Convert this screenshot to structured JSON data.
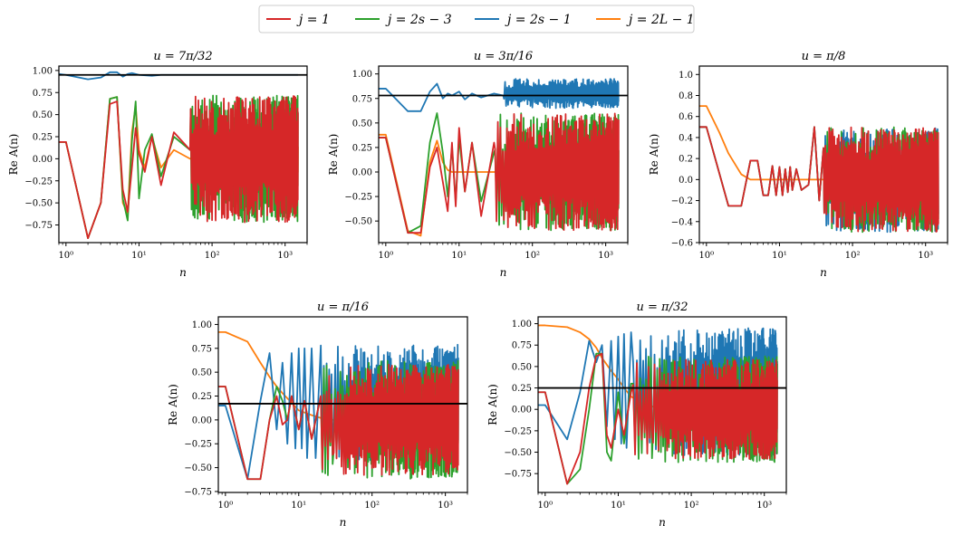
{
  "colors": {
    "j=1": "#d62728",
    "j=2s-3": "#2ca02c",
    "j=2s-1": "#1f77b4",
    "j=2L-1": "#ff7f0e",
    "reference": "#000000"
  },
  "legend": [
    {
      "key": "j=1",
      "label": "j = 1"
    },
    {
      "key": "j=2s-3",
      "label": "j = 2s − 3"
    },
    {
      "key": "j=2s-1",
      "label": "j = 2s − 1"
    },
    {
      "key": "j=2L-1",
      "label": "j = 2L − 1"
    }
  ],
  "chart_data": [
    {
      "type": "line",
      "title": "u = 7π/32",
      "xlabel": "n",
      "ylabel": "Re A(n)",
      "xscale": "log",
      "xlim": [
        0.8,
        2000
      ],
      "x_ticks": [
        "10⁰",
        "10¹",
        "10²",
        "10³"
      ],
      "ylim": [
        -0.95,
        1.05
      ],
      "y_ticks": [
        "1.00",
        "0.75",
        "0.50",
        "0.25",
        "0.00",
        "−0.25",
        "−0.50",
        "−0.75"
      ],
      "y_tick_values": [
        1.0,
        0.75,
        0.5,
        0.25,
        0.0,
        -0.25,
        -0.5,
        -0.75
      ],
      "reference_line": 0.95,
      "series": [
        {
          "key": "j=2s-1",
          "x": [
            0.8,
            1,
            2,
            3,
            4,
            5,
            6,
            7,
            8,
            10,
            15,
            20,
            30,
            50,
            100,
            200,
            500,
            1500
          ],
          "y": [
            0.96,
            0.95,
            0.9,
            0.92,
            0.98,
            0.98,
            0.93,
            0.96,
            0.97,
            0.95,
            0.94,
            0.95,
            0.95,
            0.95,
            0.95,
            0.95,
            0.95,
            0.95
          ],
          "noise": {
            "from": 80,
            "amp": 0.03,
            "offset": 0.95
          }
        },
        {
          "key": "j=2L-1",
          "x": [
            0.8,
            1,
            2,
            3,
            4,
            5,
            6,
            7,
            8,
            9,
            10,
            12,
            15,
            20,
            30,
            50,
            100
          ],
          "y": [
            0.19,
            0.19,
            -0.9,
            -0.5,
            0.68,
            0.7,
            -0.5,
            -0.62,
            0.3,
            0.6,
            0.1,
            -0.1,
            0.25,
            -0.1,
            0.1,
            0.0,
            0.0
          ],
          "noise": {
            "from": 40,
            "amp": 0.35,
            "offset": 0.0
          }
        },
        {
          "key": "j=2s-3",
          "x": [
            0.8,
            1,
            2,
            3,
            4,
            5,
            6,
            7,
            8,
            9,
            10,
            12,
            15,
            20,
            30,
            50
          ],
          "y": [
            0.19,
            0.19,
            -0.9,
            -0.5,
            0.68,
            0.7,
            -0.45,
            -0.7,
            0.2,
            0.65,
            -0.45,
            0.1,
            0.28,
            -0.2,
            0.25,
            0.1
          ],
          "noise": {
            "from": 50,
            "amp": 0.72,
            "offset": 0.0
          }
        },
        {
          "key": "j=1",
          "x": [
            0.8,
            1,
            2,
            3,
            4,
            5,
            6,
            7,
            8,
            9,
            10,
            12,
            15,
            20,
            30,
            50
          ],
          "y": [
            0.19,
            0.19,
            -0.9,
            -0.5,
            0.62,
            0.65,
            -0.35,
            -0.6,
            -0.1,
            0.35,
            0.05,
            -0.15,
            0.25,
            -0.3,
            0.3,
            0.1
          ],
          "noise": {
            "from": 40,
            "amp": 0.72,
            "offset": 0.0
          }
        }
      ]
    },
    {
      "type": "line",
      "title": "u = 3π/16",
      "xlabel": "n",
      "ylabel": "Re A(n)",
      "xscale": "log",
      "xlim": [
        0.8,
        2000
      ],
      "x_ticks": [
        "10⁰",
        "10¹",
        "10²",
        "10³"
      ],
      "ylim": [
        -0.72,
        1.08
      ],
      "y_ticks": [
        "1.00",
        "0.75",
        "0.50",
        "0.25",
        "0.00",
        "−0.25",
        "−0.50"
      ],
      "y_tick_values": [
        1.0,
        0.75,
        0.5,
        0.25,
        0.0,
        -0.25,
        -0.5
      ],
      "reference_line": 0.78,
      "series": [
        {
          "key": "j=2s-1",
          "x": [
            0.8,
            1,
            2,
            3,
            4,
            5,
            6,
            7,
            8,
            10,
            12,
            15,
            20,
            30,
            40
          ],
          "y": [
            0.85,
            0.85,
            0.62,
            0.62,
            0.82,
            0.9,
            0.75,
            0.8,
            0.78,
            0.82,
            0.74,
            0.8,
            0.76,
            0.8,
            0.78
          ],
          "noise": {
            "from": 40,
            "amp": 0.15,
            "offset": 0.8
          }
        },
        {
          "key": "j=2L-1",
          "x": [
            0.8,
            1,
            2,
            3,
            4,
            5,
            6,
            7,
            8,
            10,
            12,
            15,
            20,
            50,
            100,
            200,
            500,
            1500
          ],
          "y": [
            0.38,
            0.38,
            -0.6,
            -0.65,
            0.1,
            0.32,
            0.1,
            0.02,
            0.0,
            0.0,
            0.0,
            0.0,
            0.0,
            0.0,
            0.0,
            0.0,
            0.0,
            0.0
          ]
        },
        {
          "key": "j=2s-3",
          "x": [
            0.8,
            1,
            2,
            3,
            4,
            5,
            6,
            7,
            8,
            9,
            10,
            12,
            15,
            20,
            30
          ],
          "y": [
            0.35,
            0.35,
            -0.62,
            -0.55,
            0.3,
            0.6,
            0.2,
            -0.25,
            0.25,
            -0.3,
            0.35,
            -0.2,
            0.3,
            -0.3,
            0.2
          ],
          "noise": {
            "from": 30,
            "amp": 0.6,
            "offset": 0.0
          }
        },
        {
          "key": "j=1",
          "x": [
            0.8,
            1,
            2,
            3,
            4,
            5,
            6,
            7,
            8,
            9,
            10,
            12,
            15,
            20,
            30
          ],
          "y": [
            0.35,
            0.35,
            -0.62,
            -0.62,
            0.05,
            0.25,
            -0.1,
            -0.4,
            0.3,
            -0.35,
            0.45,
            -0.2,
            0.3,
            -0.45,
            0.3
          ],
          "noise": {
            "from": 25,
            "amp": 0.6,
            "offset": 0.0
          }
        }
      ]
    },
    {
      "type": "line",
      "title": "u = π/8",
      "xlabel": "n",
      "ylabel": "Re A(n)",
      "xscale": "log",
      "xlim": [
        0.8,
        2000
      ],
      "x_ticks": [
        "10⁰",
        "10¹",
        "10²",
        "10³"
      ],
      "ylim": [
        -0.6,
        1.08
      ],
      "y_ticks": [
        "1.0",
        "0.8",
        "0.6",
        "0.4",
        "0.2",
        "0.0",
        "−0.2",
        "−0.4",
        "−0.6"
      ],
      "y_tick_values": [
        1.0,
        0.8,
        0.6,
        0.4,
        0.2,
        0.0,
        -0.2,
        -0.4,
        -0.6
      ],
      "reference_line": null,
      "series": [
        {
          "key": "j=2L-1",
          "x": [
            0.8,
            1,
            1.5,
            2,
            3,
            4,
            5,
            6,
            8,
            10,
            15,
            20,
            30,
            50,
            100,
            200,
            500,
            1500
          ],
          "y": [
            0.7,
            0.7,
            0.45,
            0.25,
            0.05,
            0.0,
            0.0,
            0.0,
            0.0,
            0.0,
            0.0,
            0.0,
            0.0,
            0.0,
            0.0,
            0.0,
            0.0,
            0.0
          ]
        },
        {
          "key": "j=2s-1",
          "x": [
            0.8,
            1,
            2,
            3,
            4,
            5,
            6,
            7,
            8,
            9,
            10,
            11,
            12,
            13,
            14,
            15,
            17,
            20,
            25,
            30,
            35,
            40
          ],
          "y": [
            0.5,
            0.5,
            -0.25,
            -0.25,
            0.18,
            0.18,
            -0.15,
            -0.15,
            0.13,
            -0.15,
            0.12,
            -0.15,
            0.1,
            -0.12,
            0.12,
            -0.1,
            0.1,
            -0.1,
            -0.05,
            0.5,
            -0.2,
            0.3
          ],
          "noise": {
            "from": 40,
            "amp": 0.5,
            "offset": 0.0
          }
        },
        {
          "key": "j=2s-3",
          "x": [
            0.8,
            1,
            2,
            3,
            4,
            5,
            6,
            7,
            8,
            9,
            10,
            11,
            12,
            13,
            14,
            15,
            17,
            20,
            25,
            30,
            35,
            40
          ],
          "y": [
            0.5,
            0.5,
            -0.25,
            -0.25,
            0.18,
            0.18,
            -0.15,
            -0.15,
            0.13,
            -0.15,
            0.12,
            -0.15,
            0.1,
            -0.12,
            0.12,
            -0.1,
            0.1,
            -0.1,
            -0.05,
            0.5,
            -0.2,
            0.3
          ],
          "noise": {
            "from": 40,
            "amp": 0.5,
            "offset": 0.0
          }
        },
        {
          "key": "j=1",
          "x": [
            0.8,
            1,
            2,
            3,
            4,
            5,
            6,
            7,
            8,
            9,
            10,
            11,
            12,
            13,
            14,
            15,
            17,
            20,
            25,
            30,
            35,
            40
          ],
          "y": [
            0.5,
            0.5,
            -0.25,
            -0.25,
            0.18,
            0.18,
            -0.15,
            -0.15,
            0.13,
            -0.15,
            0.12,
            -0.15,
            0.1,
            -0.12,
            0.12,
            -0.1,
            0.1,
            -0.1,
            -0.05,
            0.5,
            -0.2,
            0.3
          ],
          "noise": {
            "from": 40,
            "amp": 0.5,
            "offset": 0.0
          }
        }
      ]
    },
    {
      "type": "line",
      "title": "u = π/16",
      "xlabel": "n",
      "ylabel": "Re A(n)",
      "xscale": "log",
      "xlim": [
        0.8,
        2000
      ],
      "x_ticks": [
        "10⁰",
        "10¹",
        "10²",
        "10³"
      ],
      "ylim": [
        -0.76,
        1.08
      ],
      "y_ticks": [
        "1.00",
        "0.75",
        "0.50",
        "0.25",
        "0.00",
        "−0.25",
        "−0.50",
        "−0.75"
      ],
      "y_tick_values": [
        1.0,
        0.75,
        0.5,
        0.25,
        0.0,
        -0.25,
        -0.5,
        -0.75
      ],
      "reference_line": 0.17,
      "series": [
        {
          "key": "j=2L-1",
          "x": [
            0.8,
            1,
            2,
            3,
            4,
            5,
            6,
            8,
            10,
            15,
            20,
            30,
            50,
            100,
            200,
            500,
            1500
          ],
          "y": [
            0.92,
            0.92,
            0.82,
            0.6,
            0.45,
            0.35,
            0.28,
            0.18,
            0.1,
            0.05,
            0.02,
            0.0,
            0.0,
            0.0,
            0.0,
            0.0,
            0.0
          ]
        },
        {
          "key": "j=2s-1",
          "x": [
            0.8,
            1,
            2,
            3,
            4,
            5,
            6,
            7,
            8,
            9,
            10,
            11,
            12,
            13,
            15,
            17,
            20
          ],
          "y": [
            0.15,
            0.15,
            -0.62,
            0.2,
            0.7,
            -0.1,
            0.6,
            -0.25,
            0.7,
            -0.3,
            0.75,
            -0.3,
            0.75,
            -0.4,
            0.75,
            -0.4,
            0.78
          ],
          "noise": {
            "from": 20,
            "amp": 0.62,
            "offset": 0.17
          }
        },
        {
          "key": "j=2s-3",
          "x": [
            0.8,
            1,
            2,
            3,
            4,
            5,
            6,
            7,
            8,
            10,
            12,
            15,
            20
          ],
          "y": [
            0.35,
            0.35,
            -0.62,
            -0.62,
            0.0,
            0.35,
            0.2,
            0.0,
            0.25,
            -0.1,
            0.2,
            -0.2,
            0.25
          ],
          "noise": {
            "from": 20,
            "amp": 0.62,
            "offset": 0.0
          }
        },
        {
          "key": "j=1",
          "x": [
            0.8,
            1,
            2,
            3,
            4,
            5,
            6,
            7,
            8,
            10,
            12,
            15,
            20
          ],
          "y": [
            0.35,
            0.35,
            -0.62,
            -0.62,
            0.0,
            0.25,
            -0.05,
            0.0,
            0.25,
            -0.1,
            0.2,
            -0.2,
            0.25
          ],
          "noise": {
            "from": 20,
            "amp": 0.58,
            "offset": 0.0
          }
        }
      ]
    },
    {
      "type": "line",
      "title": "u = π/32",
      "xlabel": "n",
      "ylabel": "Re A(n)",
      "xscale": "log",
      "xlim": [
        0.8,
        2000
      ],
      "x_ticks": [
        "10⁰",
        "10¹",
        "10²",
        "10³"
      ],
      "ylim": [
        -0.97,
        1.08
      ],
      "y_ticks": [
        "1.00",
        "0.75",
        "0.50",
        "0.25",
        "0.00",
        "−0.25",
        "−0.50",
        "−0.75"
      ],
      "y_tick_values": [
        1.0,
        0.75,
        0.5,
        0.25,
        0.0,
        -0.25,
        -0.5,
        -0.75
      ],
      "reference_line": 0.25,
      "series": [
        {
          "key": "j=2L-1",
          "x": [
            0.8,
            1,
            2,
            3,
            4,
            5,
            6,
            8,
            10,
            12,
            15,
            20,
            30,
            50,
            100,
            200,
            500,
            1500
          ],
          "y": [
            0.98,
            0.98,
            0.96,
            0.9,
            0.82,
            0.72,
            0.6,
            0.45,
            0.35,
            0.25,
            0.15,
            0.08,
            0.03,
            0.0,
            0.0,
            0.0,
            0.0,
            0.0
          ]
        },
        {
          "key": "j=2s-1",
          "x": [
            0.8,
            1,
            2,
            3,
            4,
            5,
            6,
            7,
            8,
            9,
            10,
            11,
            12,
            13,
            15
          ],
          "y": [
            0.05,
            0.05,
            -0.35,
            0.2,
            0.8,
            0.55,
            0.75,
            -0.2,
            0.8,
            -0.35,
            0.85,
            -0.4,
            0.88,
            -0.45,
            0.9
          ],
          "noise": {
            "from": 15,
            "amp": 0.75,
            "offset": 0.2
          }
        },
        {
          "key": "j=2s-3",
          "x": [
            0.8,
            1,
            2,
            3,
            4,
            5,
            6,
            7,
            8,
            10,
            12,
            15
          ],
          "y": [
            0.2,
            0.2,
            -0.87,
            -0.7,
            0.0,
            0.65,
            0.65,
            -0.5,
            -0.6,
            0.2,
            -0.4,
            0.3
          ],
          "noise": {
            "from": 15,
            "amp": 0.62,
            "offset": 0.0
          }
        },
        {
          "key": "j=1",
          "x": [
            0.8,
            1,
            2,
            3,
            4,
            5,
            6,
            7,
            8,
            10,
            12,
            15
          ],
          "y": [
            0.2,
            0.2,
            -0.87,
            -0.5,
            0.25,
            0.62,
            0.65,
            -0.3,
            -0.45,
            0.0,
            -0.3,
            0.2
          ],
          "noise": {
            "from": 15,
            "amp": 0.58,
            "offset": 0.0
          }
        }
      ]
    }
  ]
}
